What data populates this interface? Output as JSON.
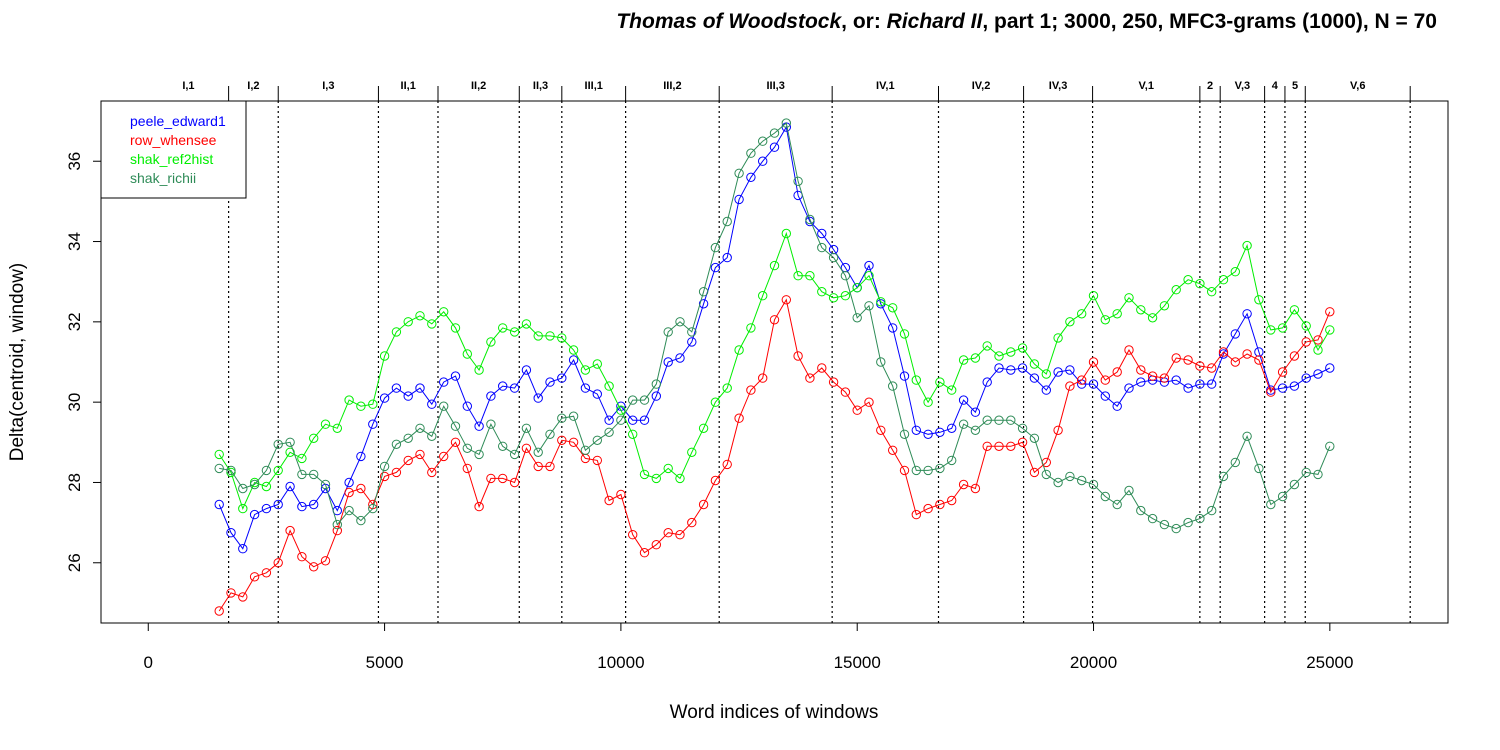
{
  "chart_data": {
    "type": "line",
    "title_parts": [
      {
        "text": "Thomas of Woodstock",
        "italic": true
      },
      {
        "text": ", or: ",
        "italic": false
      },
      {
        "text": "Richard II",
        "italic": true
      },
      {
        "text": ", part 1; 3000, 250, MFC3-grams (1000), N = 70",
        "italic": false
      }
    ],
    "xlabel": "Word indices of windows",
    "ylabel": "Delta(centroid, window)",
    "xlim": [
      -1000,
      27500
    ],
    "ylim": [
      24.5,
      37.5
    ],
    "x_ticks": [
      0,
      5000,
      10000,
      15000,
      20000,
      25000
    ],
    "y_ticks": [
      26,
      28,
      30,
      32,
      34,
      36
    ],
    "grid": false,
    "legend_position": "top-left",
    "scene_boundaries": [
      1700,
      2750,
      4870,
      6130,
      7850,
      8750,
      10100,
      12080,
      14470,
      16720,
      18520,
      19980,
      22250,
      22680,
      23620,
      24050,
      24480,
      26700
    ],
    "scene_labels": [
      {
        "label": "I,1",
        "x": 850
      },
      {
        "label": "I,2",
        "x": 2225
      },
      {
        "label": "I,3",
        "x": 3810
      },
      {
        "label": "II,1",
        "x": 5500
      },
      {
        "label": "II,2",
        "x": 6990
      },
      {
        "label": "II,3",
        "x": 8300
      },
      {
        "label": "III,1",
        "x": 9425
      },
      {
        "label": "III,2",
        "x": 11090
      },
      {
        "label": "III,3",
        "x": 13275
      },
      {
        "label": "IV,1",
        "x": 15595
      },
      {
        "label": "IV,2",
        "x": 17620
      },
      {
        "label": "IV,3",
        "x": 19250
      },
      {
        "label": "V,1",
        "x": 21115
      },
      {
        "label": "2",
        "x": 22465
      },
      {
        "label": "V,3",
        "x": 23150
      },
      {
        "label": "4",
        "x": 23835
      },
      {
        "label": "5",
        "x": 24265
      },
      {
        "label": "V,6",
        "x": 25590
      }
    ],
    "x": [
      1500,
      1750,
      2000,
      2250,
      2500,
      2750,
      3000,
      3250,
      3500,
      3750,
      4000,
      4250,
      4500,
      4750,
      5000,
      5250,
      5500,
      5750,
      6000,
      6250,
      6500,
      6750,
      7000,
      7250,
      7500,
      7750,
      8000,
      8250,
      8500,
      8750,
      9000,
      9250,
      9500,
      9750,
      10000,
      10250,
      10500,
      10750,
      11000,
      11250,
      11500,
      11750,
      12000,
      12250,
      12500,
      12750,
      13000,
      13250,
      13500,
      13750,
      14000,
      14250,
      14500,
      14750,
      15000,
      15250,
      15500,
      15750,
      16000,
      16250,
      16500,
      16750,
      17000,
      17250,
      17500,
      17750,
      18000,
      18250,
      18500,
      18750,
      19000,
      19250,
      19500,
      19750,
      20000,
      20250,
      20500,
      20750,
      21000,
      21250,
      21500,
      21750,
      22000,
      22250,
      22500,
      22750,
      23000,
      23250,
      23500,
      23750,
      24000,
      24250,
      24500,
      24750,
      25000
    ],
    "series": [
      {
        "name": "peele_edward1",
        "color": "#0000ff",
        "values": [
          27.45,
          26.75,
          26.35,
          27.2,
          27.35,
          27.45,
          27.9,
          27.4,
          27.45,
          27.85,
          27.3,
          28.0,
          28.65,
          29.45,
          30.1,
          30.35,
          30.15,
          30.35,
          29.95,
          30.5,
          30.65,
          29.9,
          29.4,
          30.15,
          30.4,
          30.35,
          30.8,
          30.1,
          30.5,
          30.6,
          31.05,
          30.35,
          30.2,
          29.55,
          29.9,
          29.55,
          29.55,
          30.15,
          31.0,
          31.1,
          31.5,
          32.45,
          33.35,
          33.6,
          35.05,
          35.6,
          36.0,
          36.35,
          36.85,
          35.15,
          34.5,
          34.2,
          33.8,
          33.35,
          32.85,
          33.4,
          32.45,
          31.85,
          30.65,
          29.3,
          29.2,
          29.25,
          29.35,
          30.05,
          29.75,
          30.5,
          30.85,
          30.8,
          30.85,
          30.6,
          30.3,
          30.75,
          30.8,
          30.45,
          30.45,
          30.15,
          29.9,
          30.35,
          30.5,
          30.55,
          30.5,
          30.55,
          30.35,
          30.45,
          30.45,
          31.2,
          31.7,
          32.2,
          31.25,
          30.3,
          30.35,
          30.4,
          30.6,
          30.7,
          30.85
        ]
      },
      {
        "name": "row_whensee",
        "color": "#ff0000",
        "values": [
          24.8,
          25.25,
          25.15,
          25.65,
          25.75,
          26.0,
          26.8,
          26.15,
          25.9,
          26.05,
          26.8,
          27.75,
          27.85,
          27.45,
          28.15,
          28.25,
          28.55,
          28.7,
          28.25,
          28.65,
          29.0,
          28.35,
          27.4,
          28.1,
          28.1,
          28.0,
          28.85,
          28.4,
          28.4,
          29.05,
          29.0,
          28.6,
          28.55,
          27.55,
          27.7,
          26.7,
          26.25,
          26.45,
          26.75,
          26.7,
          27.0,
          27.45,
          28.05,
          28.45,
          29.6,
          30.3,
          30.6,
          32.05,
          32.55,
          31.15,
          30.6,
          30.85,
          30.5,
          30.25,
          29.8,
          30.0,
          29.3,
          28.8,
          28.3,
          27.2,
          27.35,
          27.45,
          27.55,
          27.95,
          27.85,
          28.9,
          28.9,
          28.9,
          29.0,
          28.25,
          28.5,
          29.3,
          30.4,
          30.55,
          31.0,
          30.55,
          30.75,
          31.3,
          30.8,
          30.65,
          30.6,
          31.1,
          31.05,
          30.9,
          30.85,
          31.25,
          31.0,
          31.2,
          31.05,
          30.25,
          30.75,
          31.15,
          31.5,
          31.55,
          32.25
        ]
      },
      {
        "name": "shak_ref2hist",
        "color": "#00ee00",
        "values": [
          28.7,
          28.25,
          27.35,
          28.0,
          27.9,
          28.3,
          28.75,
          28.6,
          29.1,
          29.45,
          29.35,
          30.05,
          29.9,
          29.95,
          31.15,
          31.75,
          32.0,
          32.15,
          31.95,
          32.25,
          31.85,
          31.2,
          30.8,
          31.5,
          31.85,
          31.75,
          31.95,
          31.65,
          31.65,
          31.6,
          31.3,
          30.8,
          30.95,
          30.4,
          29.8,
          29.2,
          28.2,
          28.1,
          28.35,
          28.1,
          28.75,
          29.35,
          30.0,
          30.35,
          31.3,
          31.85,
          32.65,
          33.4,
          34.2,
          33.15,
          33.15,
          32.75,
          32.6,
          32.65,
          32.85,
          33.15,
          32.5,
          32.35,
          31.7,
          30.55,
          30.0,
          30.5,
          30.3,
          31.05,
          31.1,
          31.4,
          31.15,
          31.25,
          31.35,
          30.95,
          30.7,
          31.6,
          32.0,
          32.2,
          32.65,
          32.05,
          32.2,
          32.6,
          32.3,
          32.1,
          32.4,
          32.8,
          33.05,
          32.95,
          32.75,
          33.05,
          33.25,
          33.9,
          32.55,
          31.8,
          31.85,
          32.3,
          31.9,
          31.3,
          31.8
        ]
      },
      {
        "name": "shak_richii",
        "color": "#2e8b57",
        "values": [
          28.35,
          28.3,
          27.85,
          27.95,
          28.3,
          28.95,
          29.0,
          28.2,
          28.2,
          27.95,
          26.95,
          27.3,
          27.05,
          27.35,
          28.4,
          28.95,
          29.1,
          29.35,
          29.15,
          29.9,
          29.4,
          28.85,
          28.7,
          29.45,
          28.9,
          28.7,
          29.35,
          28.75,
          29.2,
          29.6,
          29.65,
          28.8,
          29.05,
          29.25,
          29.55,
          30.05,
          30.05,
          30.45,
          31.75,
          32.0,
          31.75,
          32.75,
          33.85,
          34.5,
          35.7,
          36.2,
          36.5,
          36.7,
          36.95,
          35.5,
          34.55,
          33.85,
          33.6,
          33.15,
          32.1,
          32.4,
          31.0,
          30.4,
          29.2,
          28.3,
          28.3,
          28.35,
          28.55,
          29.45,
          29.3,
          29.55,
          29.55,
          29.55,
          29.35,
          29.1,
          28.2,
          28.0,
          28.15,
          28.05,
          27.95,
          27.65,
          27.45,
          27.8,
          27.3,
          27.1,
          26.95,
          26.85,
          27.0,
          27.1,
          27.3,
          28.15,
          28.5,
          29.15,
          28.35,
          27.45,
          27.65,
          27.95,
          28.25,
          28.2,
          28.9
        ]
      }
    ]
  }
}
